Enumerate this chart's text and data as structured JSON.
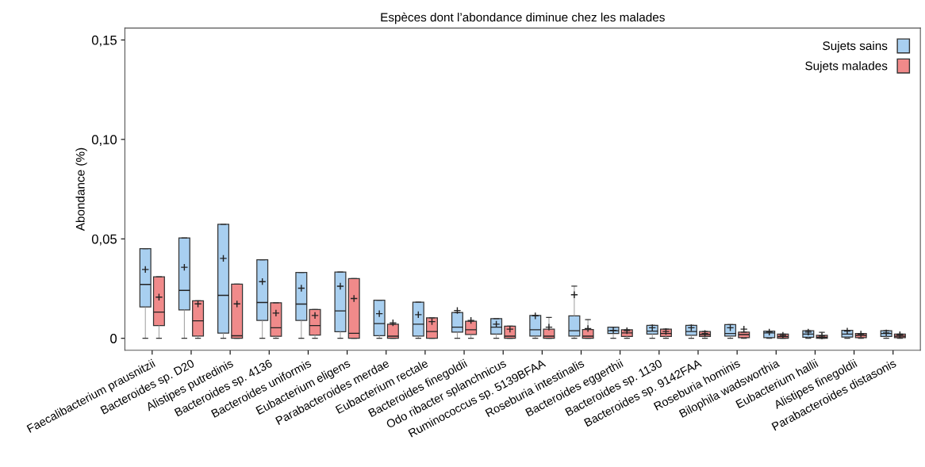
{
  "chart_data": {
    "type": "box",
    "title": "Espèces dont l’abondance diminue chez les malades",
    "ylabel": "Abondance (%)",
    "categories": [
      "Faecalibacterium prausnitzii",
      "Bacteroides sp. D20",
      "Alistipes putredinis",
      "Bacteroides sp. 4136",
      "Bacteroides uniformis",
      "Eubacterium eligens",
      "Parabacteroides merdae",
      "Eubacterium rectale",
      "Bacteroides finegoldii",
      "Odo ribacter splanchnicus",
      "Ruminococcus sp. 5139BFAA",
      "Roseburia intestinalis",
      "Bacteroides eggerthii",
      "Bacteroides sp. 1130",
      "Bacteroides sp. 9142FAA",
      "Roseburia hominis",
      "Bilophila wadsworthia",
      "Eubacterium hallii",
      "Alistipes finegoldii",
      "Parabacteroides distasonis"
    ],
    "ylim": [
      -0.006,
      0.156
    ],
    "yticks": [
      0,
      {
        "value": 0.05,
        "label": "0,05"
      },
      {
        "value": 0.1,
        "label": "0,10"
      },
      {
        "value": 0.15,
        "label": "0,15"
      }
    ],
    "legend": "top right",
    "grid": false,
    "marker": "cross",
    "series": [
      {
        "name": "Sujets sains",
        "color": "#a8cff0",
        "boxes": [
          {
            "low": 0,
            "q1": 0.0158,
            "median": 0.0271,
            "q3": 0.0451,
            "high": 0.0451,
            "mean": 0.0346
          },
          {
            "low": 0,
            "q1": 0.0143,
            "median": 0.0241,
            "q3": 0.0505,
            "high": 0.0505,
            "mean": 0.0357
          },
          {
            "low": 0,
            "q1": 0.0026,
            "median": 0.0216,
            "q3": 0.0573,
            "high": 0.0573,
            "mean": 0.0402
          },
          {
            "low": 0,
            "q1": 0.009,
            "median": 0.018,
            "q3": 0.0395,
            "high": 0.0395,
            "mean": 0.0285
          },
          {
            "low": 0,
            "q1": 0.009,
            "median": 0.0172,
            "q3": 0.0331,
            "high": 0.0331,
            "mean": 0.0252
          },
          {
            "low": 0,
            "q1": 0.0033,
            "median": 0.0138,
            "q3": 0.0333,
            "high": 0.0333,
            "mean": 0.0262
          },
          {
            "low": 0,
            "q1": 0.0013,
            "median": 0.0074,
            "q3": 0.0192,
            "high": 0.0192,
            "mean": 0.0124
          },
          {
            "low": 0,
            "q1": 0.0011,
            "median": 0.0071,
            "q3": 0.0182,
            "high": 0.0182,
            "mean": 0.0119
          },
          {
            "low": 0,
            "q1": 0.0031,
            "median": 0.0056,
            "q3": 0.013,
            "high": 0.013,
            "mean": 0.014
          },
          {
            "low": 0,
            "q1": 0.0021,
            "median": 0.0056,
            "q3": 0.0099,
            "high": 0.0099,
            "mean": 0.0071
          },
          {
            "low": 0,
            "q1": 0.0011,
            "median": 0.0043,
            "q3": 0.0115,
            "high": 0.0115,
            "mean": 0.0113
          },
          {
            "low": 0,
            "q1": 0.0011,
            "median": 0.0038,
            "q3": 0.0113,
            "high": 0.0262,
            "mean": 0.0219
          },
          {
            "low": 0,
            "q1": 0.0024,
            "median": 0.0038,
            "q3": 0.0056,
            "high": 0.0056,
            "mean": 0.004
          },
          {
            "low": 0,
            "q1": 0.0021,
            "median": 0.0036,
            "q3": 0.0065,
            "high": 0.0065,
            "mean": 0.0053
          },
          {
            "low": 0,
            "q1": 0.0015,
            "median": 0.0034,
            "q3": 0.0065,
            "high": 0.0065,
            "mean": 0.0053
          },
          {
            "low": 0,
            "q1": 0.0011,
            "median": 0.0024,
            "q3": 0.0069,
            "high": 0.0069,
            "mean": 0.0053
          },
          {
            "low": 0,
            "q1": 0.0003,
            "median": 0.0027,
            "q3": 0.0036,
            "high": 0.0036,
            "mean": 0.0031
          },
          {
            "low": 0,
            "q1": 0.0005,
            "median": 0.0021,
            "q3": 0.0038,
            "high": 0.0038,
            "mean": 0.0031
          },
          {
            "low": 0,
            "q1": 0.0006,
            "median": 0.0021,
            "q3": 0.004,
            "high": 0.004,
            "mean": 0.0036
          },
          {
            "low": 0,
            "q1": 0.0009,
            "median": 0.0024,
            "q3": 0.0038,
            "high": 0.0038,
            "mean": 0.0027
          }
        ]
      },
      {
        "name": "Sujets malades",
        "color": "#f08a8a",
        "boxes": [
          {
            "low": 0,
            "q1": 0.0064,
            "median": 0.0132,
            "q3": 0.0309,
            "high": 0.0309,
            "mean": 0.0207
          },
          {
            "low": 0,
            "q1": 0.0011,
            "median": 0.0088,
            "q3": 0.0189,
            "high": 0.0189,
            "mean": 0.0173
          },
          {
            "low": 0,
            "q1": 0,
            "median": 0.0013,
            "q3": 0.0272,
            "high": 0.0272,
            "mean": 0.0173
          },
          {
            "low": 0,
            "q1": 0.001,
            "median": 0.0053,
            "q3": 0.0179,
            "high": 0.0179,
            "mean": 0.0127
          },
          {
            "low": 0,
            "q1": 0.0016,
            "median": 0.0064,
            "q3": 0.0145,
            "high": 0.0145,
            "mean": 0.0115
          },
          {
            "low": 0,
            "q1": 0,
            "median": 0.0025,
            "q3": 0.03,
            "high": 0.03,
            "mean": 0.02
          },
          {
            "low": 0,
            "q1": 0,
            "median": 0.0011,
            "q3": 0.0071,
            "high": 0.0071,
            "mean": 0.0078
          },
          {
            "low": 0,
            "q1": 0,
            "median": 0.0034,
            "q3": 0.0103,
            "high": 0.0103,
            "mean": 0.0084
          },
          {
            "low": 0,
            "q1": 0.0019,
            "median": 0.0043,
            "q3": 0.0086,
            "high": 0.0086,
            "mean": 0.009
          },
          {
            "low": 0,
            "q1": 0,
            "median": 0.0011,
            "q3": 0.0061,
            "high": 0.0061,
            "mean": 0.0046
          },
          {
            "low": 0,
            "q1": 0,
            "median": 0.0011,
            "q3": 0.0046,
            "high": 0.0105,
            "mean": 0.0056
          },
          {
            "low": 0,
            "q1": 0,
            "median": 0.0011,
            "q3": 0.0044,
            "high": 0.0094,
            "mean": 0.0049
          },
          {
            "low": 0,
            "q1": 0.0009,
            "median": 0.0027,
            "q3": 0.0043,
            "high": 0.0043,
            "mean": 0.0038
          },
          {
            "low": 0,
            "q1": 0.0009,
            "median": 0.0024,
            "q3": 0.0046,
            "high": 0.0046,
            "mean": 0.0034
          },
          {
            "low": 0,
            "q1": 0.0009,
            "median": 0.0019,
            "q3": 0.0034,
            "high": 0.0034,
            "mean": 0.0024
          },
          {
            "low": 0,
            "q1": 0.0003,
            "median": 0.0019,
            "q3": 0.0031,
            "high": 0.0031,
            "mean": 0.0046
          },
          {
            "low": 0,
            "q1": 0,
            "median": 0.0009,
            "q3": 0.0021,
            "high": 0.0021,
            "mean": 0.0015
          },
          {
            "low": 0,
            "q1": 0,
            "median": 0.0005,
            "q3": 0.0015,
            "high": 0.003,
            "mean": 0.0012
          },
          {
            "low": 0,
            "q1": 0.0003,
            "median": 0.0015,
            "q3": 0.0024,
            "high": 0.0024,
            "mean": 0.0021
          },
          {
            "low": 0,
            "q1": 0.0003,
            "median": 0.0011,
            "q3": 0.0021,
            "high": 0.0021,
            "mean": 0.0018
          }
        ]
      }
    ]
  }
}
